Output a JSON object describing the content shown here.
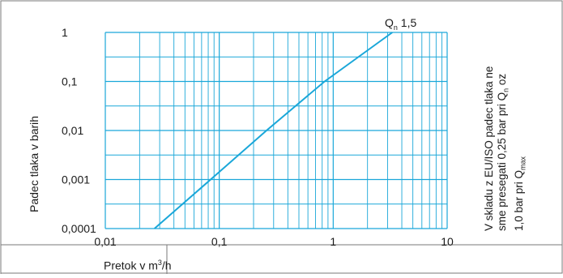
{
  "chart_data": {
    "type": "line",
    "xscale": "log",
    "yscale": "log",
    "xlim": [
      0.01,
      10
    ],
    "ylim": [
      0.0001,
      1
    ],
    "x_ticks": [
      "0,01",
      "0,1",
      "1",
      "10"
    ],
    "y_ticks": [
      "1",
      "0,1",
      "0,01",
      "0,001",
      "0,0001"
    ],
    "xlabel": "Pretok v m",
    "xlabel_sup": "3",
    "xlabel_unit": "/h",
    "ylabel": "Padec tlaka v barih",
    "grid": true,
    "series": [
      {
        "name": "Q",
        "name_sub": "n",
        "name_value": "1,5",
        "color": "#1aa7d9",
        "x": [
          0.027,
          0.084,
          0.26,
          0.84,
          3.3
        ],
        "y": [
          0.0001,
          0.001,
          0.01,
          0.1,
          1
        ]
      }
    ],
    "annotation": {
      "line1": "V skladu z EU/ISO padec tlaka ne",
      "line2_a": "sme presegati 0,25 bar pri Q",
      "line2_sub": "n",
      "line2_b": " oz",
      "line3_a": "1,0 bar pri Q",
      "line3_sub": "max"
    }
  },
  "colors": {
    "grid": "#1aa7d9",
    "frame": "#7a7a7a",
    "text": "#1a1a1a"
  }
}
